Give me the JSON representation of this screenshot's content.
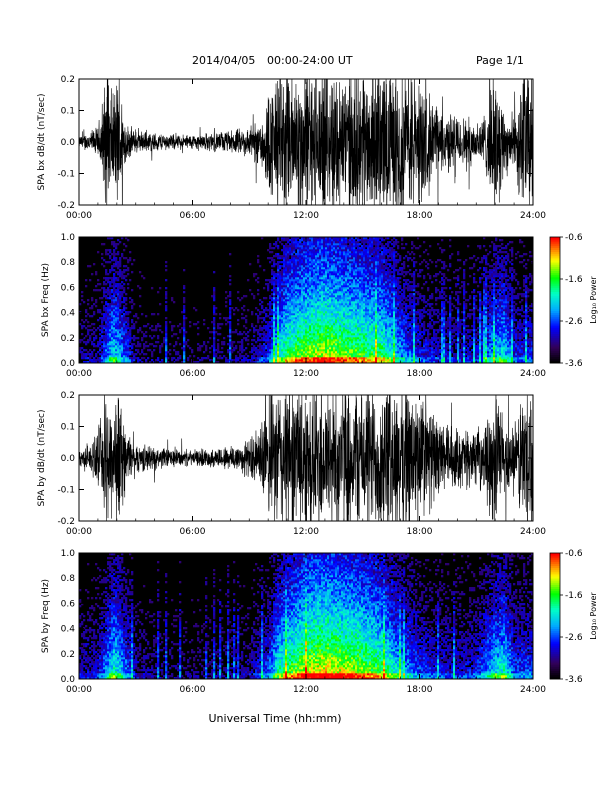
{
  "header": {
    "date_label": "2014/04/05",
    "range_label": "00:00-24:00 UT",
    "page_label": "Page 1/1"
  },
  "footer": {
    "xlabel": "Universal Time (hh:mm)"
  },
  "colorbar_label": "Log₁₀ Power",
  "chart_data": [
    {
      "type": "line",
      "ylabel": "SPA bx dB/dt (nT/sec)",
      "xlim": [
        "00:00",
        "24:00"
      ],
      "ylim": [
        -0.2,
        0.2
      ],
      "xticks": [
        "00:00",
        "06:00",
        "12:00",
        "18:00",
        "24:00"
      ],
      "yticks": [
        "-0.2",
        "-0.1",
        "0.0",
        "0.1",
        "0.2"
      ],
      "x_hours": [
        0,
        1,
        1.5,
        1.8,
        2.1,
        2.5,
        3,
        4,
        5,
        6,
        7,
        8,
        9,
        9.5,
        10,
        10.5,
        11,
        11.5,
        12,
        12.5,
        13,
        14,
        15,
        16,
        17,
        17.5,
        18,
        19,
        20,
        21,
        21.5,
        22,
        22.5,
        23,
        23.5,
        24
      ],
      "amplitude": [
        0.015,
        0.04,
        0.2,
        0.12,
        0.2,
        0.05,
        0.03,
        0.025,
        0.02,
        0.02,
        0.025,
        0.03,
        0.04,
        0.06,
        0.13,
        0.2,
        0.2,
        0.2,
        0.2,
        0.2,
        0.2,
        0.2,
        0.2,
        0.2,
        0.2,
        0.2,
        0.17,
        0.09,
        0.07,
        0.06,
        0.08,
        0.2,
        0.09,
        0.07,
        0.2,
        0.2
      ]
    },
    {
      "type": "heatmap",
      "ylabel": "SPA bx Freq (Hz)",
      "xlim": [
        "00:00",
        "24:00"
      ],
      "ylim": [
        0.0,
        1.0
      ],
      "xticks": [
        "00:00",
        "06:00",
        "12:00",
        "18:00",
        "24:00"
      ],
      "yticks": [
        "0.0",
        "0.2",
        "0.4",
        "0.6",
        "0.8",
        "1.0"
      ],
      "colorbar": {
        "min": -3.6,
        "max": -0.6,
        "ticks": [
          "-0.6",
          "-1.6",
          "-2.6",
          "-3.6"
        ]
      },
      "activity_hours": [
        0,
        1,
        1.8,
        2.1,
        3,
        5,
        7,
        9,
        10,
        10.5,
        11,
        11.5,
        12,
        13,
        14,
        15,
        16,
        16.5,
        17,
        18,
        19,
        20,
        21,
        22,
        22.5,
        23,
        24
      ],
      "activity_level": [
        0.15,
        0.2,
        0.55,
        0.5,
        0.15,
        0.1,
        0.1,
        0.15,
        0.3,
        0.55,
        0.7,
        0.75,
        0.8,
        0.85,
        0.8,
        0.75,
        0.7,
        0.6,
        0.45,
        0.3,
        0.25,
        0.2,
        0.25,
        0.5,
        0.55,
        0.3,
        0.3
      ]
    },
    {
      "type": "line",
      "ylabel": "SPA by dB/dt (nT/sec)",
      "xlim": [
        "00:00",
        "24:00"
      ],
      "ylim": [
        -0.2,
        0.2
      ],
      "xticks": [
        "00:00",
        "06:00",
        "12:00",
        "18:00",
        "24:00"
      ],
      "yticks": [
        "-0.2",
        "-0.1",
        "0.0",
        "0.1",
        "0.2"
      ],
      "x_hours": [
        0,
        1,
        1.5,
        1.8,
        2.1,
        2.5,
        3,
        4,
        5,
        6,
        7,
        8,
        9,
        9.5,
        10,
        10.5,
        11,
        11.5,
        12,
        12.5,
        13,
        14,
        15,
        16,
        17,
        17.5,
        18,
        19,
        20,
        21,
        21.5,
        22,
        22.5,
        23,
        23.5,
        24
      ],
      "amplitude": [
        0.02,
        0.06,
        0.2,
        0.15,
        0.2,
        0.07,
        0.04,
        0.03,
        0.025,
        0.02,
        0.025,
        0.035,
        0.05,
        0.08,
        0.15,
        0.2,
        0.2,
        0.2,
        0.2,
        0.2,
        0.2,
        0.2,
        0.2,
        0.2,
        0.2,
        0.2,
        0.18,
        0.1,
        0.08,
        0.07,
        0.09,
        0.2,
        0.1,
        0.08,
        0.2,
        0.2
      ]
    },
    {
      "type": "heatmap",
      "ylabel": "SPA by Freq (Hz)",
      "xlim": [
        "00:00",
        "24:00"
      ],
      "ylim": [
        0.0,
        1.0
      ],
      "xticks": [
        "00:00",
        "06:00",
        "12:00",
        "18:00",
        "24:00"
      ],
      "yticks": [
        "0.0",
        "0.2",
        "0.4",
        "0.6",
        "0.8",
        "1.0"
      ],
      "colorbar": {
        "min": -3.6,
        "max": -0.6,
        "ticks": [
          "-0.6",
          "-1.6",
          "-2.6",
          "-3.6"
        ]
      },
      "activity_hours": [
        0,
        1,
        1.8,
        2.1,
        3,
        5,
        7,
        9,
        10,
        10.5,
        11,
        11.5,
        12,
        13,
        14,
        15,
        16,
        16.5,
        17,
        18,
        19,
        20,
        21,
        22,
        22.5,
        23,
        24
      ],
      "activity_level": [
        0.2,
        0.25,
        0.6,
        0.55,
        0.2,
        0.12,
        0.12,
        0.18,
        0.35,
        0.6,
        0.72,
        0.78,
        0.85,
        0.9,
        0.85,
        0.8,
        0.72,
        0.62,
        0.5,
        0.35,
        0.28,
        0.25,
        0.3,
        0.55,
        0.6,
        0.35,
        0.35
      ]
    }
  ]
}
